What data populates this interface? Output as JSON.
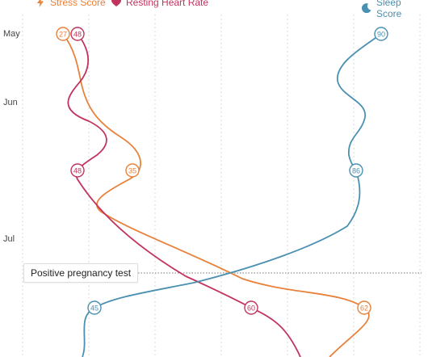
{
  "legend": {
    "stress": {
      "label": "Stress Score",
      "icon": "bolt-icon",
      "color": "#e8813a"
    },
    "heart": {
      "label": "Resting Heart Rate",
      "icon": "heart-icon",
      "color": "#c2335d"
    },
    "sleep": {
      "label": "Sleep Score",
      "icon": "moon-icon",
      "color": "#4a90b0"
    }
  },
  "months": [
    "May",
    "Jun",
    "Jul"
  ],
  "annotation": {
    "label": "Positive pregnancy test"
  },
  "chart_data": {
    "type": "line",
    "y_axis": "time (months, top to bottom)",
    "series": [
      {
        "name": "Stress Score",
        "values": [
          27,
          35,
          62
        ]
      },
      {
        "name": "Resting Heart Rate",
        "values": [
          48,
          48,
          60
        ]
      },
      {
        "name": "Sleep Score",
        "values": [
          90,
          86,
          45
        ]
      }
    ],
    "grid": true
  }
}
